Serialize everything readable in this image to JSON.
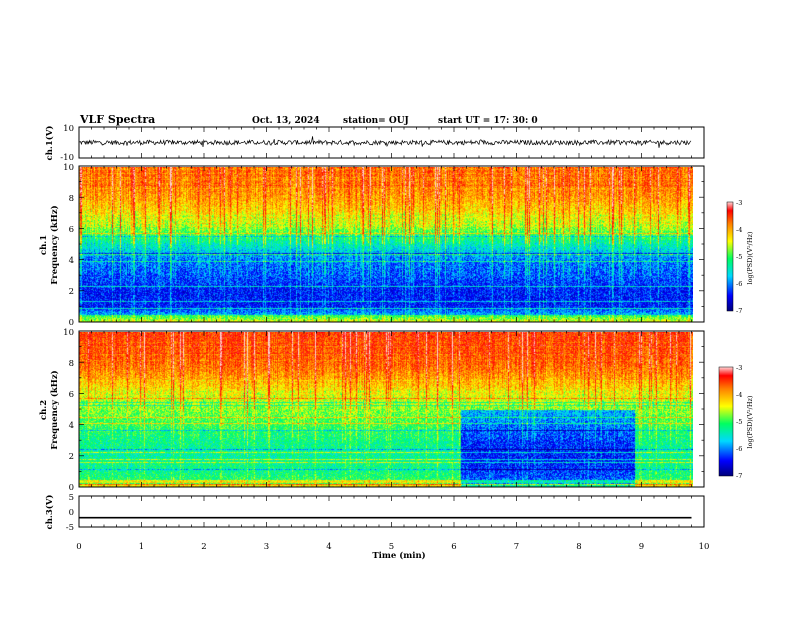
{
  "header": {
    "title": "VLF Spectra",
    "date": "Oct. 13, 2024",
    "station": "station= OUJ",
    "start_ut": "start  UT =   17: 30: 0"
  },
  "chart_data": [
    {
      "type": "line",
      "panel": "ch1-waveform",
      "ylabel": "ch.1(V)",
      "ylim": [
        -10,
        10
      ],
      "yticks": [
        "10",
        "-10"
      ],
      "xlim": [
        0,
        10
      ],
      "mean": 0,
      "amplitude": 1.5,
      "data_extent_min": 9.8
    },
    {
      "type": "heatmap",
      "panel": "ch1-spectrogram",
      "ylabel_top": "ch.1",
      "ylabel": "Frequency  (kHz)",
      "ylim": [
        0,
        10
      ],
      "yticks": [
        "0",
        "2",
        "4",
        "6",
        "8",
        "10"
      ],
      "xlim": [
        0,
        10
      ],
      "colorbar": {
        "label": "log(PSD)(V²/Hz)",
        "range": [
          -7,
          -3
        ],
        "ticks": [
          "-3",
          "-4",
          "-5",
          "-6",
          "-7"
        ]
      },
      "profile_khz": [
        [
          0,
          -5.4
        ],
        [
          0.5,
          -6.0
        ],
        [
          1,
          -6.4
        ],
        [
          2,
          -6.4
        ],
        [
          3,
          -6.2
        ],
        [
          4,
          -6.1
        ],
        [
          5,
          -5.6
        ],
        [
          6,
          -5.0
        ],
        [
          7,
          -4.6
        ],
        [
          8,
          -4.3
        ],
        [
          9,
          -4.1
        ],
        [
          10,
          -4.0
        ]
      ]
    },
    {
      "type": "heatmap",
      "panel": "ch2-spectrogram",
      "ylabel_top": "ch.2",
      "ylabel": "Frequency  (kHz)",
      "ylim": [
        0,
        10
      ],
      "yticks": [
        "0",
        "2",
        "4",
        "6",
        "8",
        "10"
      ],
      "xlim": [
        0,
        10
      ],
      "colorbar": {
        "label": "log(PSD)(V²/Hz)",
        "range": [
          -7,
          -3
        ],
        "ticks": [
          "-3",
          "-4",
          "-5",
          "-6",
          "-7"
        ]
      },
      "profile_khz": [
        [
          0,
          -5.2
        ],
        [
          1,
          -5.4
        ],
        [
          2,
          -5.5
        ],
        [
          3,
          -5.4
        ],
        [
          4,
          -5.2
        ],
        [
          5,
          -5.0
        ],
        [
          6,
          -4.7
        ],
        [
          7,
          -4.3
        ],
        [
          8,
          -4.0
        ],
        [
          9,
          -3.9
        ],
        [
          10,
          -3.8
        ]
      ],
      "quiet_interval_min": [
        6.1,
        8.9
      ]
    },
    {
      "type": "line",
      "panel": "ch3-waveform",
      "ylabel": "ch.3(V)",
      "ylim": [
        -5,
        5
      ],
      "yticks": [
        "5",
        "0",
        "-5"
      ],
      "xlim": [
        0,
        10
      ],
      "constant_value": -2
    }
  ],
  "xaxis": {
    "label": "Time  (min)",
    "ticks": [
      "0",
      "1",
      "2",
      "3",
      "4",
      "5",
      "6",
      "7",
      "8",
      "9",
      "10"
    ]
  },
  "colors": {
    "colormap": [
      "#00007a",
      "#0000ff",
      "#00d8ff",
      "#00ff60",
      "#ffff00",
      "#ff8000",
      "#ff0000",
      "#ffd8d8"
    ]
  }
}
